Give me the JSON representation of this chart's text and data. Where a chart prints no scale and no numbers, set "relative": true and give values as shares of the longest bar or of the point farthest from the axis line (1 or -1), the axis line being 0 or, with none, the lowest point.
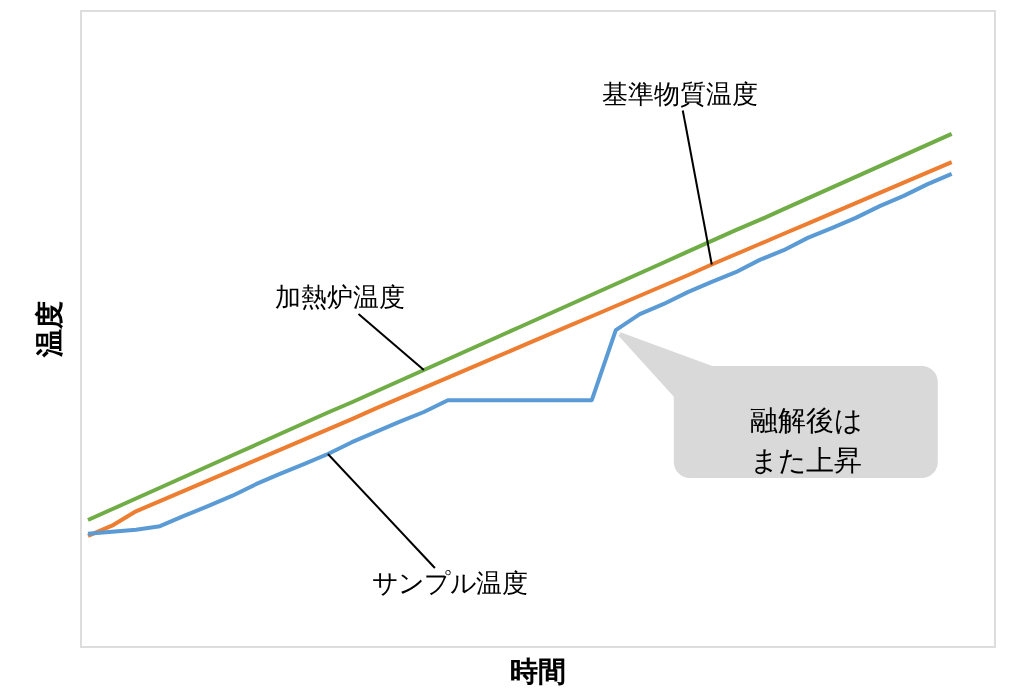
{
  "chart_data": {
    "type": "line",
    "relative": true,
    "xlabel": "時間",
    "ylabel": "温度",
    "grid": false,
    "categories": [
      null,
      null,
      null,
      null,
      null,
      null,
      null,
      null,
      null,
      null,
      null,
      null,
      null,
      null,
      null,
      null,
      null,
      null,
      null,
      null,
      null,
      null,
      null,
      null,
      null,
      null,
      null,
      null,
      null,
      null,
      null,
      null,
      null,
      null,
      null,
      null,
      null
    ],
    "series": [
      {
        "name": "加熱炉温度",
        "color": "#70ad47",
        "values": [
          0.246,
          0.267,
          0.288,
          0.309,
          0.33,
          0.351,
          0.372,
          0.393,
          0.414,
          0.435,
          0.456,
          0.476,
          0.497,
          0.518,
          0.539,
          0.56,
          0.581,
          0.602,
          0.623,
          0.644,
          0.665,
          0.686,
          0.707,
          0.728,
          0.749,
          0.77,
          0.791,
          0.812,
          0.832,
          0.853,
          0.874,
          0.895,
          0.916,
          0.937,
          0.958,
          0.979,
          1.0
        ]
      },
      {
        "name": "基準物質温度",
        "color": "#ed7d31",
        "values": [
          0.215,
          0.235,
          0.263,
          0.283,
          0.303,
          0.323,
          0.343,
          0.363,
          0.383,
          0.403,
          0.423,
          0.443,
          0.464,
          0.484,
          0.504,
          0.524,
          0.544,
          0.564,
          0.584,
          0.604,
          0.624,
          0.644,
          0.664,
          0.684,
          0.704,
          0.724,
          0.745,
          0.765,
          0.785,
          0.805,
          0.825,
          0.845,
          0.865,
          0.885,
          0.905,
          0.925,
          0.945
        ]
      },
      {
        "name": "サンプル温度",
        "color": "#5b9bd5",
        "values": [
          0.219,
          0.223,
          0.227,
          0.234,
          0.254,
          0.273,
          0.293,
          0.316,
          0.336,
          0.355,
          0.375,
          0.398,
          0.418,
          0.438,
          0.457,
          0.48,
          0.48,
          0.48,
          0.48,
          0.48,
          0.48,
          0.48,
          0.617,
          0.648,
          0.668,
          0.691,
          0.711,
          0.73,
          0.754,
          0.773,
          0.797,
          0.816,
          0.836,
          0.859,
          0.879,
          0.902,
          0.922
        ]
      }
    ],
    "annotations": [
      "融解後はまた上昇"
    ]
  }
}
